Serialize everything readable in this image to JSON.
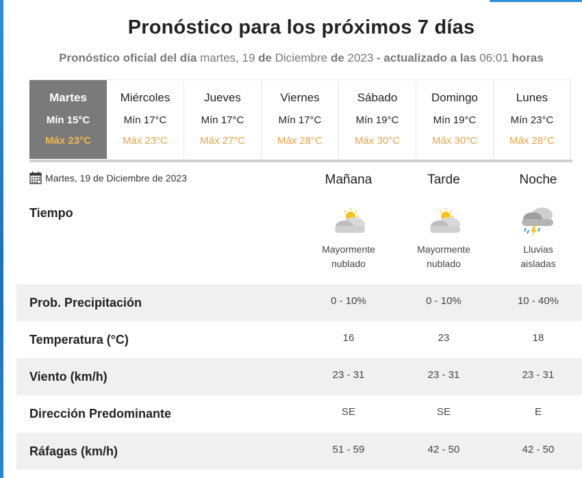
{
  "title": "Pronóstico para los próximos 7 días",
  "subtitle": {
    "part1": "Pronóstico oficial del día",
    "weekday": " martes, 19 ",
    "de1": "de",
    "month": " Diciembre ",
    "de2": "de",
    "year": " 2023 ",
    "part2": "- actualizado a las",
    "time": " 06:01 ",
    "part3": "horas"
  },
  "days": [
    {
      "name": "Martes",
      "min": "Mín 15°C",
      "max": "Máx 23°C"
    },
    {
      "name": "Miércoles",
      "min": "Mín 17°C",
      "max": "Máx 23°C"
    },
    {
      "name": "Jueves",
      "min": "Mín 17°C",
      "max": "Máx 27°C"
    },
    {
      "name": "Viernes",
      "min": "Mín 17°C",
      "max": "Máx 28°C"
    },
    {
      "name": "Sábado",
      "min": "Mín 19°C",
      "max": "Máx 30°C"
    },
    {
      "name": "Domingo",
      "min": "Mín 19°C",
      "max": "Máx 30°C"
    },
    {
      "name": "Lunes",
      "min": "Mín 23°C",
      "max": "Máx 28°C"
    }
  ],
  "selected_day_index": 0,
  "detail": {
    "date": "Martes, 19 de Diciembre de 2023",
    "date_icon": "calendar-icon",
    "periods": [
      "Mañana",
      "Tarde",
      "Noche"
    ],
    "tiempo_label": "Tiempo",
    "weather": [
      {
        "icon": "partly-cloudy-icon",
        "line1": "Mayormente",
        "line2": "nublado"
      },
      {
        "icon": "partly-cloudy-icon",
        "line1": "Mayormente",
        "line2": "nublado"
      },
      {
        "icon": "storm-rain-icon",
        "line1": "Lluvias",
        "line2": "aisladas"
      }
    ],
    "rows": [
      {
        "label": "Prob. Precipitación",
        "values": [
          "0 - 10%",
          "0 - 10%",
          "10 - 40%"
        ]
      },
      {
        "label": "Temperatura (°C)",
        "values": [
          "16",
          "23",
          "18"
        ]
      },
      {
        "label": "Viento (km/h)",
        "values": [
          "23 - 31",
          "23 - 31",
          "23 - 31"
        ]
      },
      {
        "label": "Dirección Predominante",
        "values": [
          "SE",
          "SE",
          "E"
        ]
      },
      {
        "label": "Ráfagas (km/h)",
        "values": [
          "51 - 59",
          "42 - 50",
          "42 - 50"
        ]
      }
    ]
  },
  "colors": {
    "accent_blue": "#2d8fd8",
    "active_day_bg": "#7a7a7a",
    "max_temp": "#e8a44a",
    "row_gray": "#f0f0f0"
  }
}
